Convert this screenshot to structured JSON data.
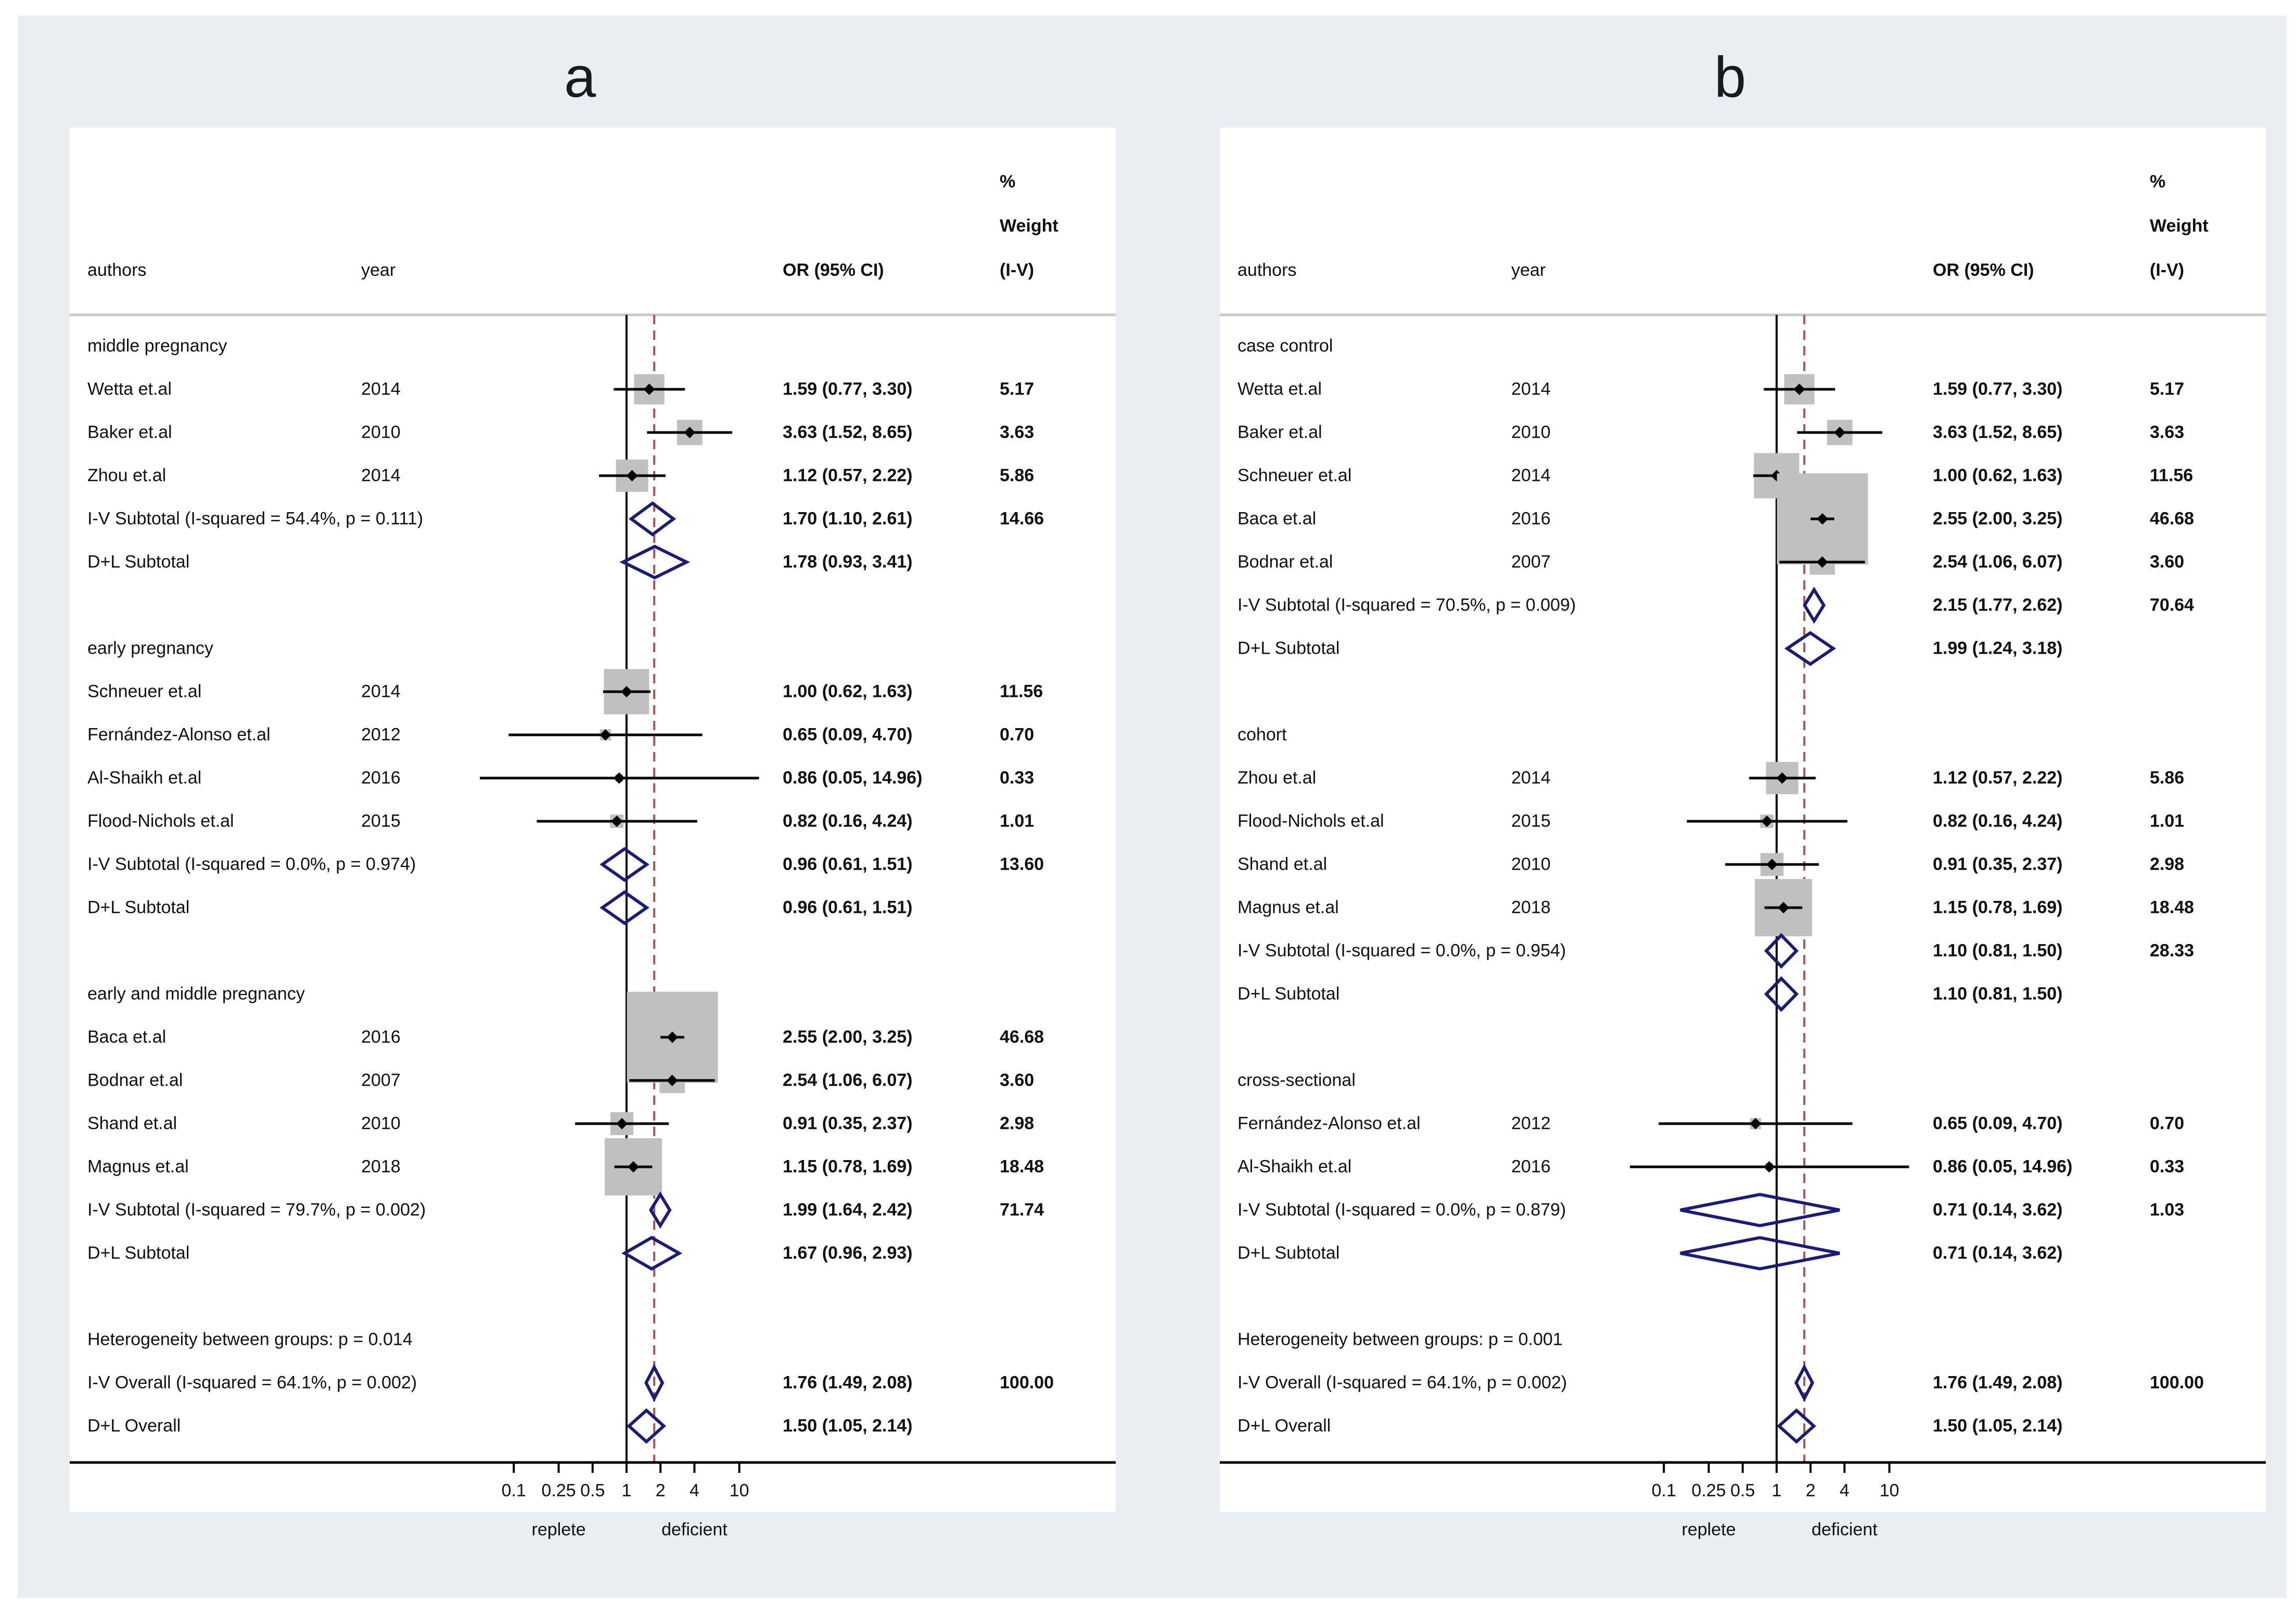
{
  "panel_labels": [
    "a",
    "b"
  ],
  "headers": {
    "authors": "authors",
    "year": "year",
    "or": "OR (95% CI)",
    "weight_line1": "%",
    "weight_line2": "Weight",
    "weight_line3": "(I-V)"
  },
  "axis": {
    "ticks": [
      "0.1",
      "0.25",
      "0.5",
      "1",
      "2",
      "4",
      "10"
    ],
    "tick_values": [
      0.1,
      0.25,
      0.5,
      1,
      2,
      4,
      10
    ],
    "left_label": "replete",
    "right_label": "deficient",
    "xlim": [
      0.03,
      30
    ],
    "scale": "log",
    "overall_or": 1.76
  },
  "colors": {
    "box": "#c0c0c0",
    "diamond": "#1b1b7a",
    "dashed": "#b05050",
    "line": "#000000"
  },
  "chart_data": [
    {
      "type": "forest",
      "panel": "a",
      "rows": [
        {
          "kind": "group",
          "label": "middle pregnancy"
        },
        {
          "kind": "study",
          "author": "Wetta et.al",
          "year": "2014",
          "or": 1.59,
          "lo": 0.77,
          "hi": 3.3,
          "ci": "1.59 (0.77, 3.30)",
          "weight": "5.17",
          "w": 5.17
        },
        {
          "kind": "study",
          "author": "Baker et.al",
          "year": "2010",
          "or": 3.63,
          "lo": 1.52,
          "hi": 8.65,
          "ci": "3.63 (1.52, 8.65)",
          "weight": "3.63",
          "w": 3.63
        },
        {
          "kind": "study",
          "author": "Zhou et.al",
          "year": "2014",
          "or": 1.12,
          "lo": 0.57,
          "hi": 2.22,
          "ci": "1.12 (0.57, 2.22)",
          "weight": "5.86",
          "w": 5.86
        },
        {
          "kind": "subtotal",
          "label": "I-V Subtotal  (I-squared = 54.4%, p = 0.111)",
          "or": 1.7,
          "lo": 1.1,
          "hi": 2.61,
          "ci": "1.70 (1.10, 2.61)",
          "weight": "14.66"
        },
        {
          "kind": "subtotal",
          "label": "D+L Subtotal",
          "or": 1.78,
          "lo": 0.93,
          "hi": 3.41,
          "ci": "1.78 (0.93, 3.41)",
          "weight": ""
        },
        {
          "kind": "blank"
        },
        {
          "kind": "group",
          "label": "early pregnancy"
        },
        {
          "kind": "study",
          "author": "Schneuer et.al",
          "year": "2014",
          "or": 1.0,
          "lo": 0.62,
          "hi": 1.63,
          "ci": "1.00 (0.62, 1.63)",
          "weight": "11.56",
          "w": 11.56
        },
        {
          "kind": "study",
          "author": "Fernández-Alonso et.al",
          "year": "2012",
          "or": 0.65,
          "lo": 0.09,
          "hi": 4.7,
          "ci": "0.65 (0.09, 4.70)",
          "weight": "0.70",
          "w": 0.7
        },
        {
          "kind": "study",
          "author": "Al-Shaikh et.al",
          "year": "2016",
          "or": 0.86,
          "lo": 0.05,
          "hi": 14.96,
          "ci": "0.86 (0.05, 14.96)",
          "weight": "0.33",
          "w": 0.33
        },
        {
          "kind": "study",
          "author": "Flood-Nichols et.al",
          "year": "2015",
          "or": 0.82,
          "lo": 0.16,
          "hi": 4.24,
          "ci": "0.82 (0.16, 4.24)",
          "weight": "1.01",
          "w": 1.01
        },
        {
          "kind": "subtotal",
          "label": "I-V Subtotal  (I-squared = 0.0%, p = 0.974)",
          "or": 0.96,
          "lo": 0.61,
          "hi": 1.51,
          "ci": "0.96 (0.61, 1.51)",
          "weight": "13.60"
        },
        {
          "kind": "subtotal",
          "label": "D+L Subtotal",
          "or": 0.96,
          "lo": 0.61,
          "hi": 1.51,
          "ci": "0.96 (0.61, 1.51)",
          "weight": ""
        },
        {
          "kind": "blank"
        },
        {
          "kind": "group",
          "label": "early and middle pregnancy"
        },
        {
          "kind": "study",
          "author": "Baca et.al",
          "year": "2016",
          "or": 2.55,
          "lo": 2.0,
          "hi": 3.25,
          "ci": "2.55 (2.00, 3.25)",
          "weight": "46.68",
          "w": 46.68
        },
        {
          "kind": "study",
          "author": "Bodnar et.al",
          "year": "2007",
          "or": 2.54,
          "lo": 1.06,
          "hi": 6.07,
          "ci": "2.54 (1.06, 6.07)",
          "weight": "3.60",
          "w": 3.6
        },
        {
          "kind": "study",
          "author": "Shand et.al",
          "year": "2010",
          "or": 0.91,
          "lo": 0.35,
          "hi": 2.37,
          "ci": "0.91 (0.35, 2.37)",
          "weight": "2.98",
          "w": 2.98
        },
        {
          "kind": "study",
          "author": "Magnus et.al",
          "year": "2018",
          "or": 1.15,
          "lo": 0.78,
          "hi": 1.69,
          "ci": "1.15 (0.78, 1.69)",
          "weight": "18.48",
          "w": 18.48
        },
        {
          "kind": "subtotal",
          "label": "I-V Subtotal  (I-squared = 79.7%, p = 0.002)",
          "or": 1.99,
          "lo": 1.64,
          "hi": 2.42,
          "ci": "1.99 (1.64, 2.42)",
          "weight": "71.74"
        },
        {
          "kind": "subtotal",
          "label": "D+L Subtotal",
          "or": 1.67,
          "lo": 0.96,
          "hi": 2.93,
          "ci": "1.67 (0.96, 2.93)",
          "weight": ""
        },
        {
          "kind": "blank"
        },
        {
          "kind": "group",
          "label": "Heterogeneity between groups: p = 0.014"
        },
        {
          "kind": "subtotal",
          "label": "I-V Overall  (I-squared = 64.1%, p = 0.002)",
          "or": 1.76,
          "lo": 1.49,
          "hi": 2.08,
          "ci": "1.76 (1.49, 2.08)",
          "weight": "100.00"
        },
        {
          "kind": "subtotal",
          "label": "D+L Overall",
          "or": 1.5,
          "lo": 1.05,
          "hi": 2.14,
          "ci": "1.50 (1.05, 2.14)",
          "weight": ""
        }
      ]
    },
    {
      "type": "forest",
      "panel": "b",
      "rows": [
        {
          "kind": "group",
          "label": "case control"
        },
        {
          "kind": "study",
          "author": "Wetta et.al",
          "year": "2014",
          "or": 1.59,
          "lo": 0.77,
          "hi": 3.3,
          "ci": "1.59 (0.77, 3.30)",
          "weight": "5.17",
          "w": 5.17
        },
        {
          "kind": "study",
          "author": "Baker et.al",
          "year": "2010",
          "or": 3.63,
          "lo": 1.52,
          "hi": 8.65,
          "ci": "3.63 (1.52, 8.65)",
          "weight": "3.63",
          "w": 3.63
        },
        {
          "kind": "study",
          "author": "Schneuer et.al",
          "year": "2014",
          "or": 1.0,
          "lo": 0.62,
          "hi": 1.63,
          "ci": "1.00 (0.62, 1.63)",
          "weight": "11.56",
          "w": 11.56
        },
        {
          "kind": "study",
          "author": "Baca et.al",
          "year": "2016",
          "or": 2.55,
          "lo": 2.0,
          "hi": 3.25,
          "ci": "2.55 (2.00, 3.25)",
          "weight": "46.68",
          "w": 46.68
        },
        {
          "kind": "study",
          "author": "Bodnar et.al",
          "year": "2007",
          "or": 2.54,
          "lo": 1.06,
          "hi": 6.07,
          "ci": "2.54 (1.06, 6.07)",
          "weight": "3.60",
          "w": 3.6
        },
        {
          "kind": "subtotal",
          "label": "I-V Subtotal  (I-squared = 70.5%, p = 0.009)",
          "or": 2.15,
          "lo": 1.77,
          "hi": 2.62,
          "ci": "2.15 (1.77, 2.62)",
          "weight": "70.64"
        },
        {
          "kind": "subtotal",
          "label": "D+L Subtotal",
          "or": 1.99,
          "lo": 1.24,
          "hi": 3.18,
          "ci": "1.99 (1.24, 3.18)",
          "weight": ""
        },
        {
          "kind": "blank"
        },
        {
          "kind": "group",
          "label": "cohort"
        },
        {
          "kind": "study",
          "author": "Zhou et.al",
          "year": "2014",
          "or": 1.12,
          "lo": 0.57,
          "hi": 2.22,
          "ci": "1.12 (0.57, 2.22)",
          "weight": "5.86",
          "w": 5.86
        },
        {
          "kind": "study",
          "author": "Flood-Nichols et.al",
          "year": "2015",
          "or": 0.82,
          "lo": 0.16,
          "hi": 4.24,
          "ci": "0.82 (0.16, 4.24)",
          "weight": "1.01",
          "w": 1.01
        },
        {
          "kind": "study",
          "author": "Shand et.al",
          "year": "2010",
          "or": 0.91,
          "lo": 0.35,
          "hi": 2.37,
          "ci": "0.91 (0.35, 2.37)",
          "weight": "2.98",
          "w": 2.98
        },
        {
          "kind": "study",
          "author": "Magnus et.al",
          "year": "2018",
          "or": 1.15,
          "lo": 0.78,
          "hi": 1.69,
          "ci": "1.15 (0.78, 1.69)",
          "weight": "18.48",
          "w": 18.48
        },
        {
          "kind": "subtotal",
          "label": "I-V Subtotal  (I-squared = 0.0%, p = 0.954)",
          "or": 1.1,
          "lo": 0.81,
          "hi": 1.5,
          "ci": "1.10 (0.81, 1.50)",
          "weight": "28.33"
        },
        {
          "kind": "subtotal",
          "label": "D+L Subtotal",
          "or": 1.1,
          "lo": 0.81,
          "hi": 1.5,
          "ci": "1.10 (0.81, 1.50)",
          "weight": ""
        },
        {
          "kind": "blank"
        },
        {
          "kind": "group",
          "label": "cross-sectional"
        },
        {
          "kind": "study",
          "author": "Fernández-Alonso et.al",
          "year": "2012",
          "or": 0.65,
          "lo": 0.09,
          "hi": 4.7,
          "ci": "0.65 (0.09, 4.70)",
          "weight": "0.70",
          "w": 0.7
        },
        {
          "kind": "study",
          "author": "Al-Shaikh et.al",
          "year": "2016",
          "or": 0.86,
          "lo": 0.05,
          "hi": 14.96,
          "ci": "0.86 (0.05, 14.96)",
          "weight": "0.33",
          "w": 0.33
        },
        {
          "kind": "subtotal",
          "label": "I-V Subtotal  (I-squared = 0.0%, p = 0.879)",
          "or": 0.71,
          "lo": 0.14,
          "hi": 3.62,
          "ci": "0.71 (0.14, 3.62)",
          "weight": "1.03"
        },
        {
          "kind": "subtotal",
          "label": "D+L Subtotal",
          "or": 0.71,
          "lo": 0.14,
          "hi": 3.62,
          "ci": "0.71 (0.14, 3.62)",
          "weight": ""
        },
        {
          "kind": "blank"
        },
        {
          "kind": "group",
          "label": "Heterogeneity between groups: p = 0.001"
        },
        {
          "kind": "subtotal",
          "label": "I-V Overall  (I-squared = 64.1%, p = 0.002)",
          "or": 1.76,
          "lo": 1.49,
          "hi": 2.08,
          "ci": "1.76 (1.49, 2.08)",
          "weight": "100.00"
        },
        {
          "kind": "subtotal",
          "label": "D+L Overall",
          "or": 1.5,
          "lo": 1.05,
          "hi": 2.14,
          "ci": "1.50 (1.05, 2.14)",
          "weight": ""
        }
      ]
    }
  ]
}
